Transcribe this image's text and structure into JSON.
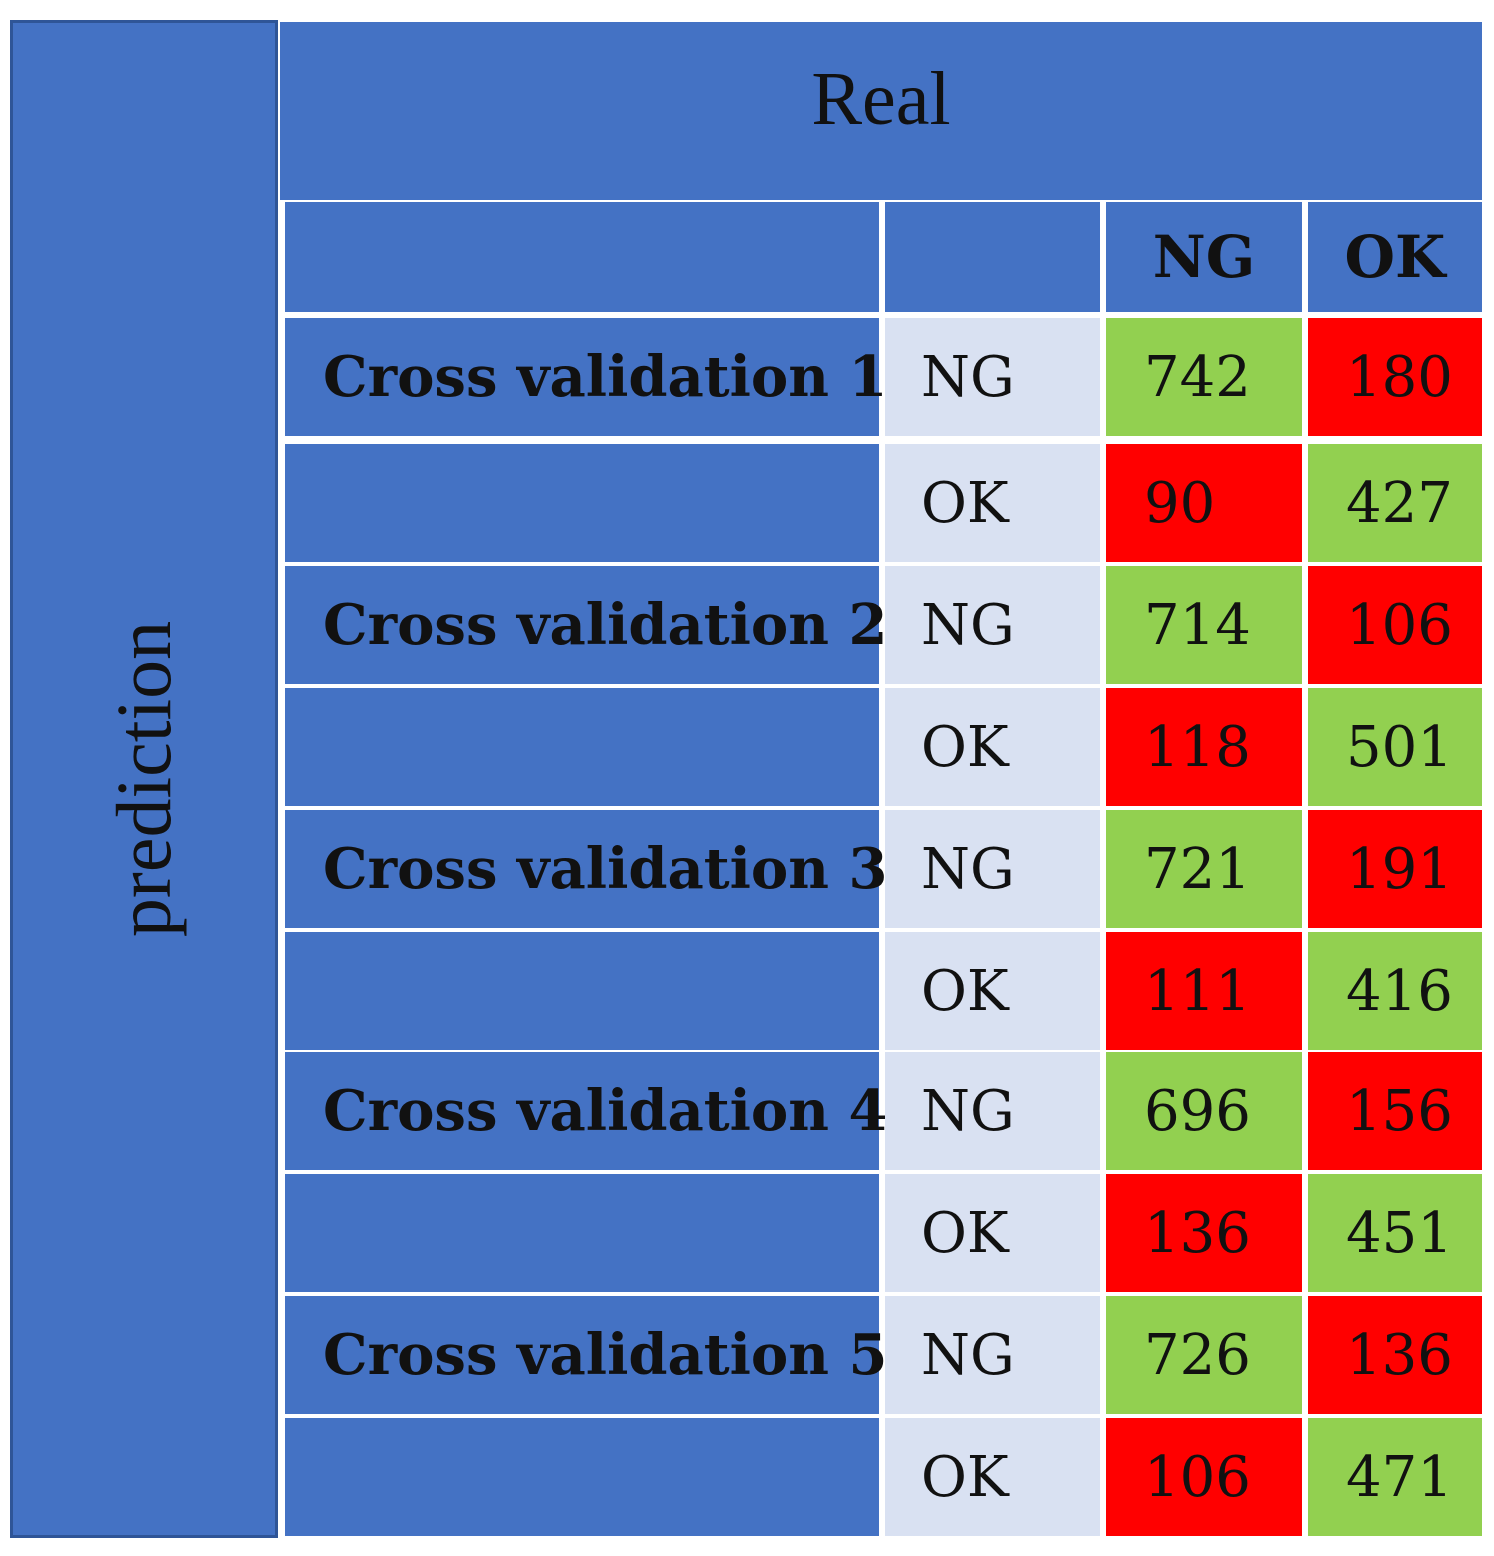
{
  "chart_data": {
    "type": "table",
    "row_axis_label": "prediction",
    "column_axis_label": "Real",
    "column_headers": [
      "NG",
      "OK"
    ],
    "colors": {
      "header": "#4472c4",
      "prediction_label": "#d9e1f2",
      "correct": "#92d050",
      "incorrect": "#ff0000"
    },
    "groups": [
      {
        "name": "Cross validation 1",
        "rows": [
          {
            "prediction": "NG",
            "values": [
              742,
              180
            ]
          },
          {
            "prediction": "OK",
            "values": [
              90,
              427
            ]
          }
        ]
      },
      {
        "name": "Cross validation 2",
        "rows": [
          {
            "prediction": "NG",
            "values": [
              714,
              106
            ]
          },
          {
            "prediction": "OK",
            "values": [
              118,
              501
            ]
          }
        ]
      },
      {
        "name": "Cross validation 3",
        "rows": [
          {
            "prediction": "NG",
            "values": [
              721,
              191
            ]
          },
          {
            "prediction": "OK",
            "values": [
              111,
              416
            ]
          }
        ]
      },
      {
        "name": "Cross validation 4",
        "rows": [
          {
            "prediction": "NG",
            "values": [
              696,
              156
            ]
          },
          {
            "prediction": "OK",
            "values": [
              136,
              451
            ]
          }
        ]
      },
      {
        "name": "Cross validation 5",
        "rows": [
          {
            "prediction": "NG",
            "values": [
              726,
              136
            ]
          },
          {
            "prediction": "OK",
            "values": [
              106,
              471
            ]
          }
        ]
      }
    ]
  }
}
